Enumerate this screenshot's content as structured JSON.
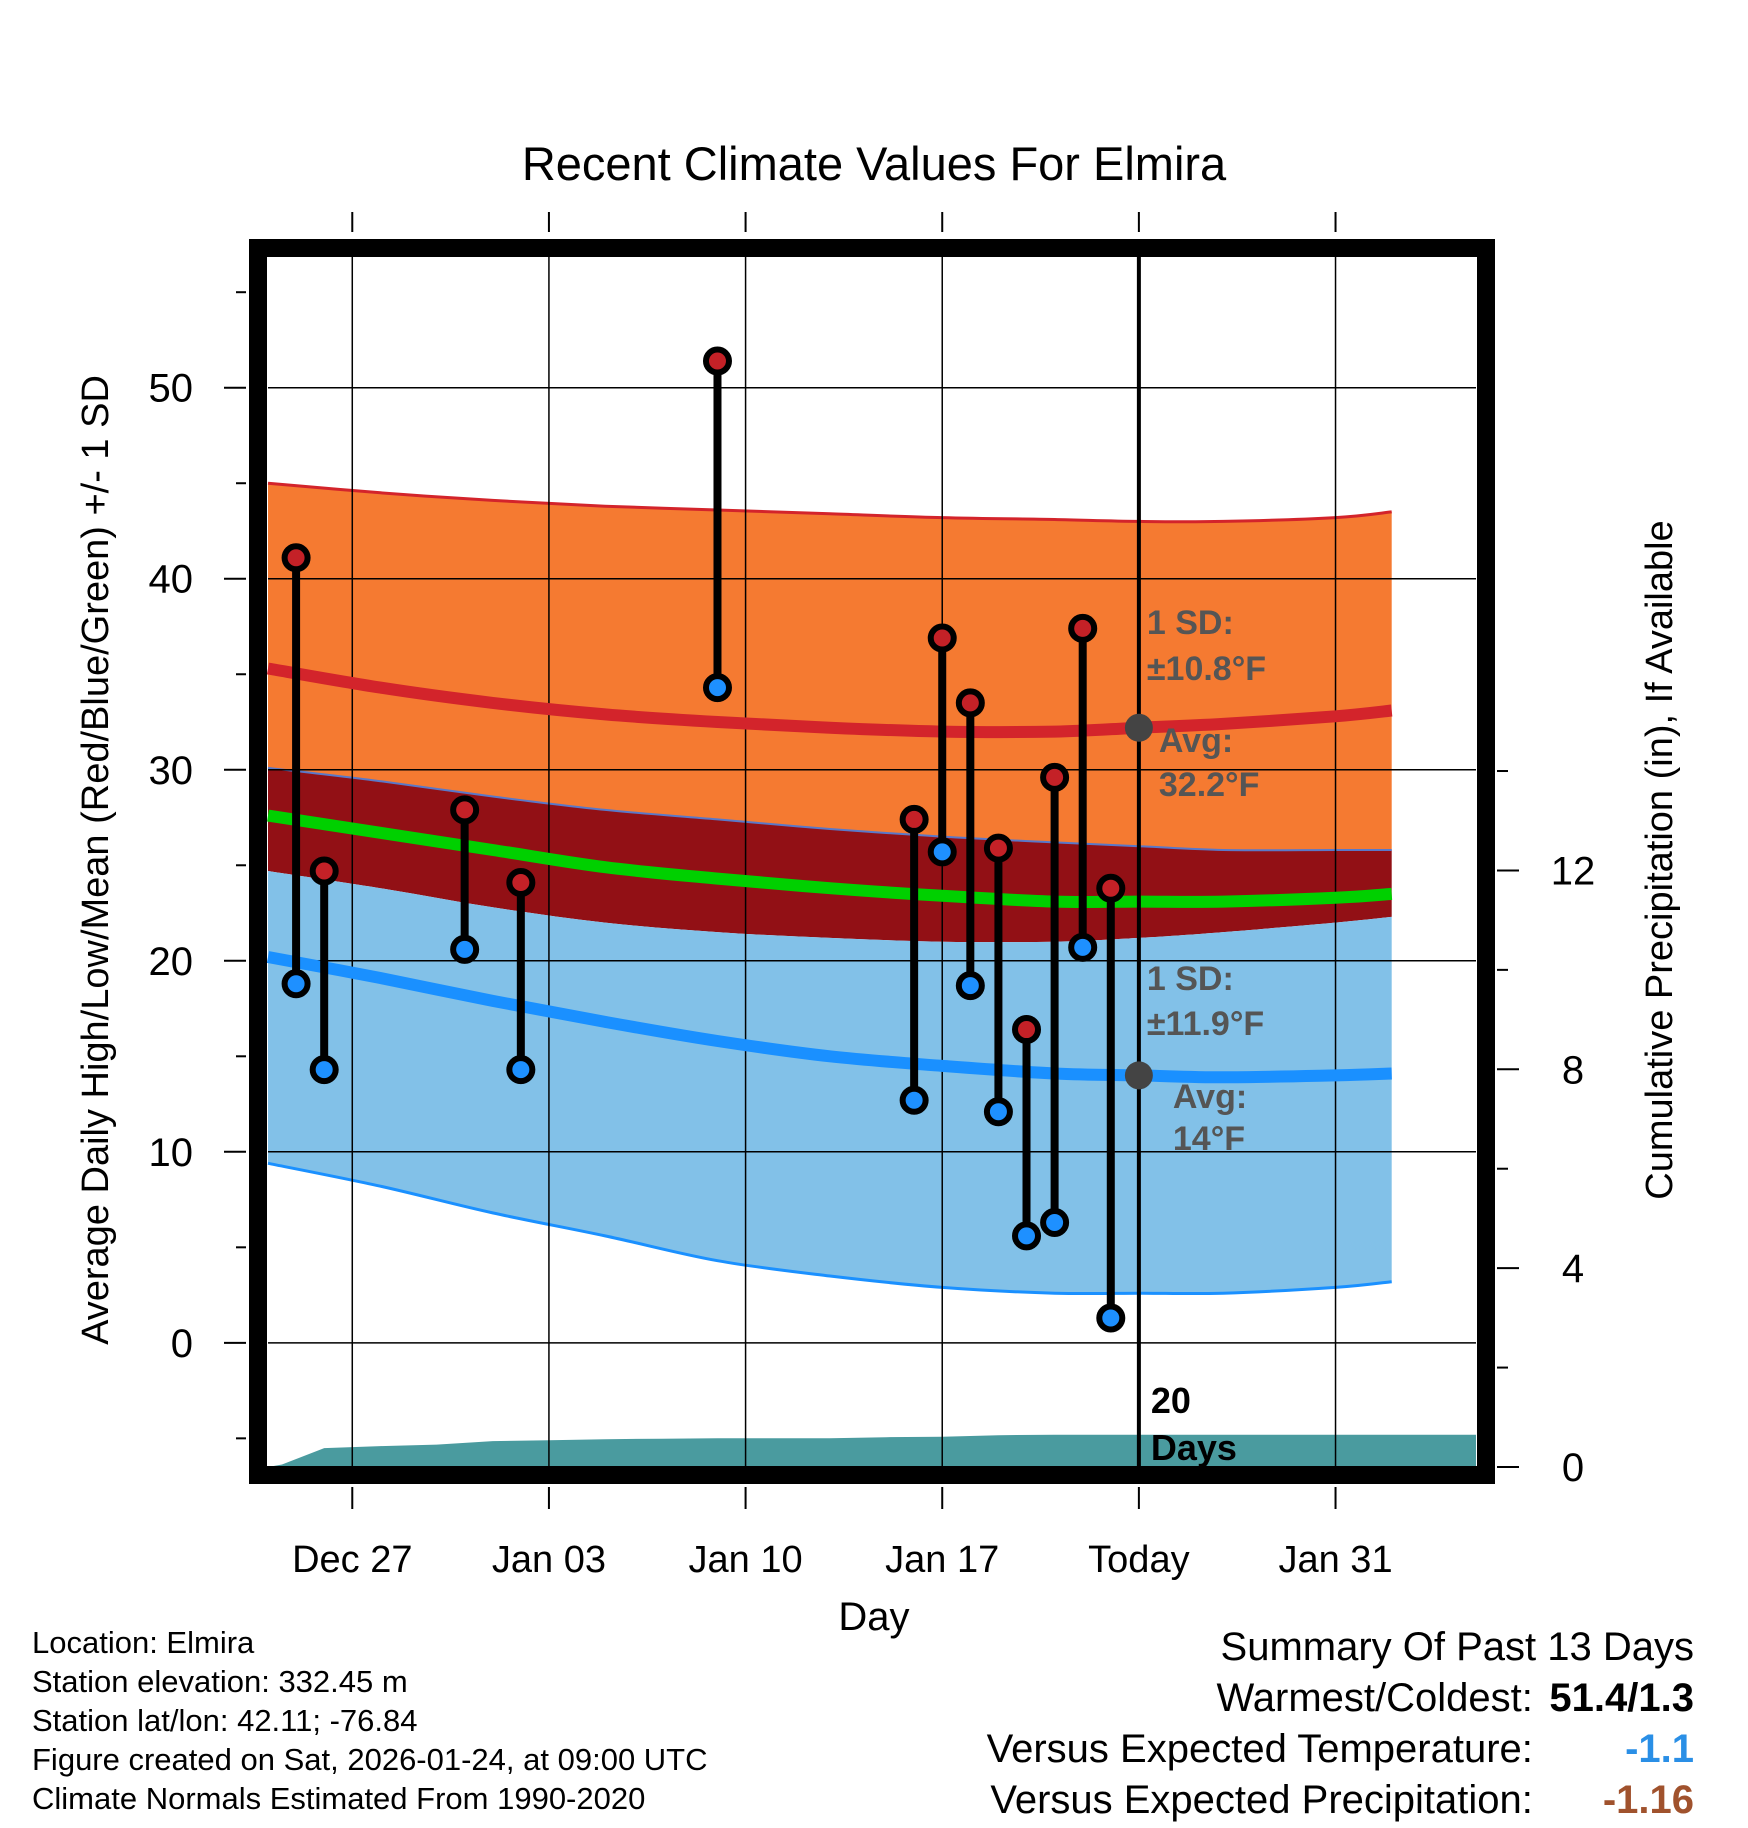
{
  "chart_data": {
    "type": "line",
    "title": "Recent Climate Values For Elmira",
    "xlabel": "Day",
    "ylabel": "Average Daily High/Low/Mean (Red/Blue/Green) +/- 1 SD",
    "y2label": "Cumulative Precipitation (in), If Available",
    "x_range_days": [
      -30,
      13
    ],
    "ylim": [
      -6.5,
      57
    ],
    "y2lim": [
      0,
      24.4
    ],
    "x_ticks": [
      {
        "day": -27,
        "label": "Dec 27"
      },
      {
        "day": -20,
        "label": "Jan 03"
      },
      {
        "day": -13,
        "label": "Jan 10"
      },
      {
        "day": -6,
        "label": "Jan 17"
      },
      {
        "day": 1,
        "label": "Today"
      },
      {
        "day": 8,
        "label": "Jan 31"
      }
    ],
    "y_ticks": [
      0,
      10,
      20,
      30,
      40,
      50
    ],
    "y2_ticks": [
      0,
      4,
      8,
      12
    ],
    "normals": {
      "days": [
        -30,
        -26,
        -22,
        -18,
        -14,
        -10,
        -6,
        -2,
        1,
        4,
        8,
        10
      ],
      "high_mean": [
        35.3,
        34.3,
        33.5,
        32.9,
        32.5,
        32.2,
        32.0,
        32.0,
        32.2,
        32.4,
        32.8,
        33.1
      ],
      "high_plus_sd": [
        45.0,
        44.5,
        44.1,
        43.8,
        43.6,
        43.4,
        43.2,
        43.1,
        43.0,
        43.0,
        43.2,
        43.5
      ],
      "high_minus_sd": [
        30.1,
        29.4,
        28.6,
        27.9,
        27.4,
        26.9,
        26.5,
        26.2,
        26.0,
        25.8,
        25.8,
        25.8
      ],
      "low_mean": [
        20.2,
        19.1,
        17.9,
        16.8,
        15.8,
        15.0,
        14.5,
        14.1,
        14.0,
        13.9,
        14.0,
        14.1
      ],
      "low_plus_sd": [
        24.7,
        23.8,
        22.8,
        22.0,
        21.5,
        21.2,
        21.0,
        21.0,
        21.2,
        21.5,
        22.0,
        22.3
      ],
      "low_minus_sd": [
        9.4,
        8.2,
        6.8,
        5.6,
        4.3,
        3.5,
        2.9,
        2.6,
        2.6,
        2.6,
        2.9,
        3.2
      ],
      "mean": [
        27.6,
        26.7,
        25.8,
        24.9,
        24.3,
        23.8,
        23.4,
        23.1,
        23.1,
        23.1,
        23.3,
        23.5
      ]
    },
    "observations": [
      {
        "day": -29,
        "high": 41.1,
        "low": 18.8
      },
      {
        "day": -28,
        "high": 24.7,
        "low": 14.3
      },
      {
        "day": -23,
        "high": 27.9,
        "low": 20.6
      },
      {
        "day": -21,
        "high": 24.1,
        "low": 14.3
      },
      {
        "day": -14,
        "high": 51.4,
        "low": 34.3
      },
      {
        "day": -7,
        "high": 27.4,
        "low": 12.7
      },
      {
        "day": -6,
        "high": 36.9,
        "low": 25.7
      },
      {
        "day": -5,
        "high": 33.5,
        "low": 18.7
      },
      {
        "day": -4,
        "high": 25.9,
        "low": 12.1
      },
      {
        "day": -3,
        "high": 16.4,
        "low": 5.6
      },
      {
        "day": -2,
        "high": 29.6,
        "low": 6.3
      },
      {
        "day": -1,
        "high": 37.4,
        "low": 20.7
      },
      {
        "day": 0,
        "high": 23.8,
        "low": 1.3
      }
    ],
    "precip_cumulative": {
      "days": [
        -30,
        -29.5,
        -28,
        -26,
        -24,
        -22,
        -20,
        -18,
        -16,
        -14,
        -12,
        -10,
        -8,
        -6,
        -4,
        -2,
        0,
        1,
        13
      ],
      "values": [
        0.0,
        0.05,
        0.38,
        0.42,
        0.45,
        0.52,
        0.54,
        0.56,
        0.57,
        0.58,
        0.58,
        0.58,
        0.6,
        0.61,
        0.64,
        0.65,
        0.65,
        0.65,
        0.65
      ]
    },
    "today_day": 1,
    "annotations": {
      "high_sd": "±10.8°F",
      "high_avg": "32.2°F",
      "low_sd": "±11.9°F",
      "low_avg": "14°F",
      "sd_label": "1 SD:",
      "avg_label": "Avg:",
      "days_number": "20",
      "days_word": "Days"
    },
    "colors": {
      "high_band": "#f57a31",
      "mean_band": "#921015",
      "low_band": "#82c1e8",
      "high_line": "#d3242b",
      "low_line": "#1a90ff",
      "mean_line": "#00d000",
      "precip": "#4a9b9f",
      "annot_text": "#555555",
      "high_marker": "#c42127",
      "low_marker": "#1e90ff"
    }
  },
  "footer": {
    "location": "Location: Elmira",
    "elevation": "Station elevation: 332.45 m",
    "latlon": "Station lat/lon: 42.11; -76.84",
    "created": "Figure created on Sat, 2026-01-24, at 09:00 UTC",
    "normals": "Climate Normals Estimated From 1990-2020"
  },
  "summary": {
    "title": "Summary Of Past 13 Days",
    "warm_cold_label": "Warmest/Coldest:",
    "warm_cold_value": "51.4/1.3",
    "temp_label": "Versus Expected Temperature:",
    "temp_value": "-1.1",
    "temp_color": "#2a8fe6",
    "precip_label": "Versus Expected Precipitation:",
    "precip_value": "-1.16",
    "precip_color": "#a0522d"
  }
}
